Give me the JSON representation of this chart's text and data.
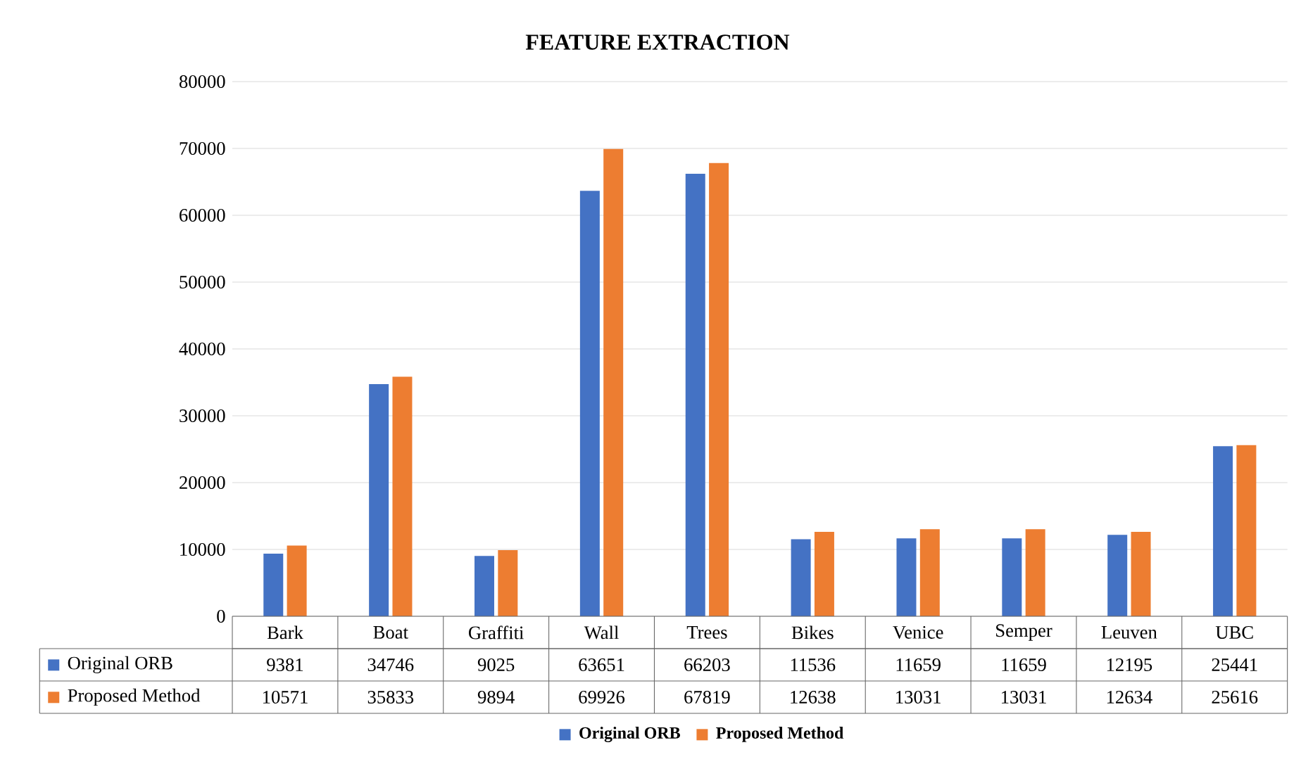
{
  "chart_data": {
    "type": "bar",
    "title": "FEATURE EXTRACTION",
    "categories": [
      "Bark",
      "Boat",
      "Graffiti",
      "Wall",
      "Trees",
      "Bikes",
      "Venice",
      "Semper",
      "Leuven",
      "UBC"
    ],
    "series": [
      {
        "name": "Original ORB",
        "color": "#4472c4",
        "values": [
          9381,
          34746,
          9025,
          63651,
          66203,
          11536,
          11659,
          11659,
          12195,
          25441
        ]
      },
      {
        "name": "Proposed Method",
        "color": "#ed7d31",
        "values": [
          10571,
          35833,
          9894,
          69926,
          67819,
          12638,
          13031,
          13031,
          12634,
          25616
        ]
      }
    ],
    "ylim": [
      0,
      80000
    ],
    "yticks": [
      0,
      10000,
      20000,
      30000,
      40000,
      50000,
      60000,
      70000,
      80000
    ],
    "grid": "y",
    "legend": "bottom",
    "data_labels": true
  }
}
